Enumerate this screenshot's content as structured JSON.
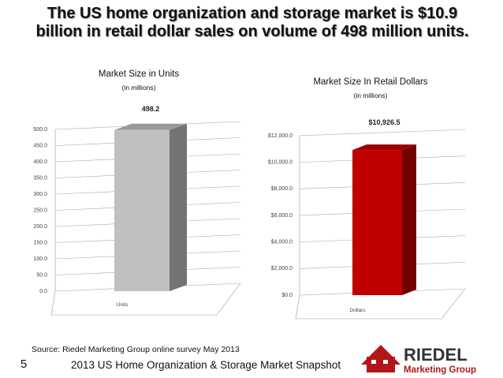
{
  "slide": {
    "title": "The US home organization and storage market is $10.9 billion in retail dollar sales on volume of 498 million units.",
    "source": "Source:  Riedel Marketing Group online survey May 2013",
    "footer": "2013 US Home Organization & Storage Market Snapshot",
    "page_number": "5",
    "logo": {
      "name": "RIEDEL",
      "tagline": "Marketing Group"
    }
  },
  "chart_data": [
    {
      "type": "bar",
      "title": "Market Size in Units",
      "subtitle": "(in millions)",
      "categories": [
        "Units"
      ],
      "values": [
        498.2
      ],
      "color": "#c0c0c0",
      "ylim": [
        0,
        500
      ],
      "yticks": [
        {
          "value": 0,
          "label": "0.0"
        },
        {
          "value": 50,
          "label": "50.0"
        },
        {
          "value": 100,
          "label": "100.0"
        },
        {
          "value": 150,
          "label": "150.0"
        },
        {
          "value": 200,
          "label": "200.0"
        },
        {
          "value": 250,
          "label": "250.0"
        },
        {
          "value": 300,
          "label": "300.0"
        },
        {
          "value": 350,
          "label": "350.0"
        },
        {
          "value": 400,
          "label": "400.0"
        },
        {
          "value": 450,
          "label": "450.0"
        },
        {
          "value": 500,
          "label": "500.0"
        }
      ],
      "grid": true
    },
    {
      "type": "bar",
      "title": "Market Size  In Retail Dollars",
      "subtitle": "(in millions)",
      "categories": [
        "Dollars"
      ],
      "values": [
        10926.5
      ],
      "value_labels": [
        "$10,926.5"
      ],
      "color": "#c00000",
      "ylim": [
        0,
        12000
      ],
      "yticks": [
        {
          "value": 0,
          "label": "$0.0"
        },
        {
          "value": 2000,
          "label": "$2,000.0"
        },
        {
          "value": 4000,
          "label": "$4,000.0"
        },
        {
          "value": 6000,
          "label": "$6,000.0"
        },
        {
          "value": 8000,
          "label": "$8,000.0"
        },
        {
          "value": 10000,
          "label": "$10,000.0"
        },
        {
          "value": 12000,
          "label": "$12,000.0"
        }
      ],
      "grid": true
    }
  ]
}
